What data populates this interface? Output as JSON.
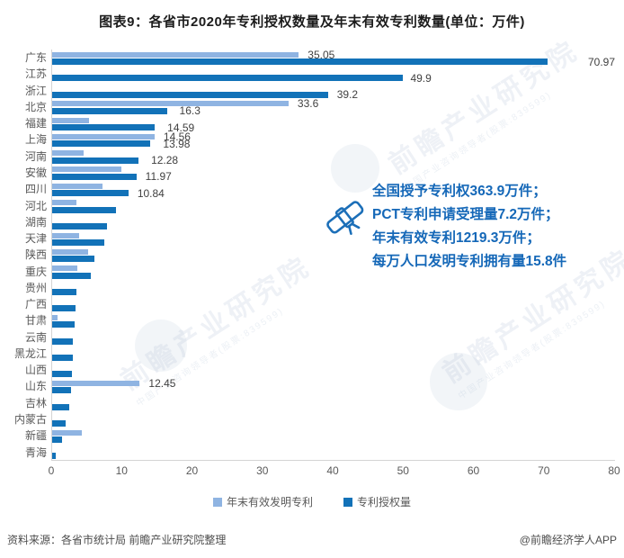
{
  "title": "图表9：各省市2020年专利授权数量及年末有效专利数量(单位：万件)",
  "axis": {
    "min": 0,
    "max": 80,
    "ticks": [
      "0",
      "10",
      "20",
      "30",
      "40",
      "50",
      "60",
      "70",
      "80"
    ]
  },
  "colors": {
    "light": "#8FB4E2",
    "dark": "#1272B8",
    "annotation_blue": "#1568B8"
  },
  "legend": [
    {
      "label": "年末有效发明专利",
      "color": "#8FB4E2"
    },
    {
      "label": "专利授权量",
      "color": "#1272B8"
    }
  ],
  "annotation": {
    "icon": "patent-certificate-icon",
    "lines": [
      "全国授予专利权363.9万件；",
      "PCT专利申请受理量7.2万件；",
      "年末有效专利1219.3万件；",
      "每万人口发明专利拥有量15.8件"
    ]
  },
  "watermark": {
    "text": "前瞻产业研究院",
    "subtext": "中国产业咨询领导者(股票:839599)"
  },
  "footer": {
    "source": "资料来源：各省市统计局 前瞻产业研究院整理",
    "credit": "@前瞻经济学人APP"
  },
  "chart_data": {
    "type": "bar",
    "orientation": "horizontal",
    "unit": "万件",
    "xlim": [
      0,
      80
    ],
    "grid": false,
    "legend_position": "bottom",
    "categories": [
      "广东",
      "江苏",
      "浙江",
      "北京",
      "福建",
      "上海",
      "河南",
      "安徽",
      "四川",
      "河北",
      "湖南",
      "天津",
      "陕西",
      "重庆",
      "贵州",
      "广西",
      "甘肃",
      "云南",
      "黑龙江",
      "山西",
      "山东",
      "吉林",
      "内蒙古",
      "新疆",
      "青海"
    ],
    "series": [
      {
        "name": "年末有效发明专利",
        "color": "#8FB4E2",
        "values": [
          35.05,
          null,
          null,
          33.6,
          5.3,
          14.56,
          4.5,
          9.9,
          7.1,
          3.5,
          null,
          3.8,
          5.1,
          3.6,
          null,
          null,
          0.8,
          null,
          null,
          null,
          12.45,
          null,
          null,
          4.2,
          null
        ],
        "labels": [
          "35.05",
          "",
          "",
          "33.6",
          "",
          "14.56",
          "",
          "",
          "",
          "",
          "",
          "",
          "",
          "",
          "",
          "",
          "",
          "",
          "",
          "",
          "12.45",
          "",
          "",
          "",
          ""
        ]
      },
      {
        "name": "专利授权量",
        "color": "#1272B8",
        "values": [
          70.97,
          49.9,
          39.2,
          16.3,
          14.59,
          13.98,
          12.28,
          11.97,
          10.84,
          9.1,
          7.8,
          7.4,
          6.0,
          5.5,
          3.4,
          3.3,
          3.2,
          2.9,
          2.9,
          2.8,
          2.7,
          2.4,
          1.9,
          1.4,
          0.5
        ],
        "labels": [
          "70.97",
          "49.9",
          "39.2",
          "16.3",
          "14.59",
          "13.98",
          "12.28",
          "11.97",
          "10.84",
          "",
          "",
          "",
          "",
          "",
          "",
          "",
          "",
          "",
          "",
          "",
          "",
          "",
          "",
          "",
          ""
        ],
        "label_gaps": [
          45,
          8,
          10,
          14,
          14,
          14,
          14,
          10,
          10
        ]
      }
    ]
  }
}
